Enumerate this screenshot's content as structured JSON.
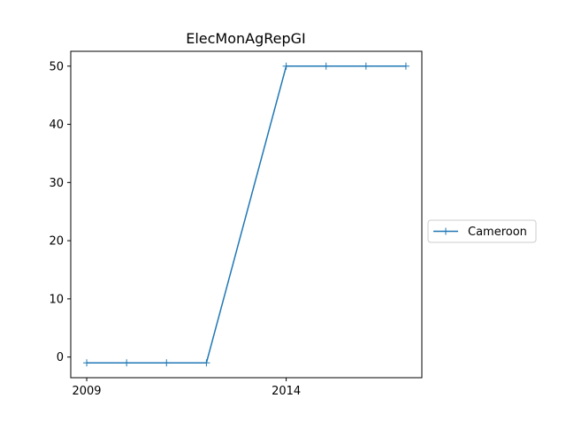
{
  "chart_data": {
    "type": "line",
    "title": "ElecMonAgRepGI",
    "xlabel": "",
    "ylabel": "",
    "x": [
      2009,
      2010,
      2011,
      2012,
      2014,
      2015,
      2016,
      2017
    ],
    "series": [
      {
        "name": "Cameroon",
        "values": [
          -1,
          -1,
          -1,
          -1,
          50,
          50,
          50,
          50
        ],
        "color": "#1f77b4",
        "marker": "plus"
      }
    ],
    "xlim": [
      2008.6,
      2017.4
    ],
    "ylim": [
      -3.55,
      52.55
    ],
    "xticks": [
      2009,
      2014
    ],
    "yticks": [
      0,
      10,
      20,
      30,
      40,
      50
    ],
    "grid": false,
    "legend_position": "center-right, outside plot"
  }
}
